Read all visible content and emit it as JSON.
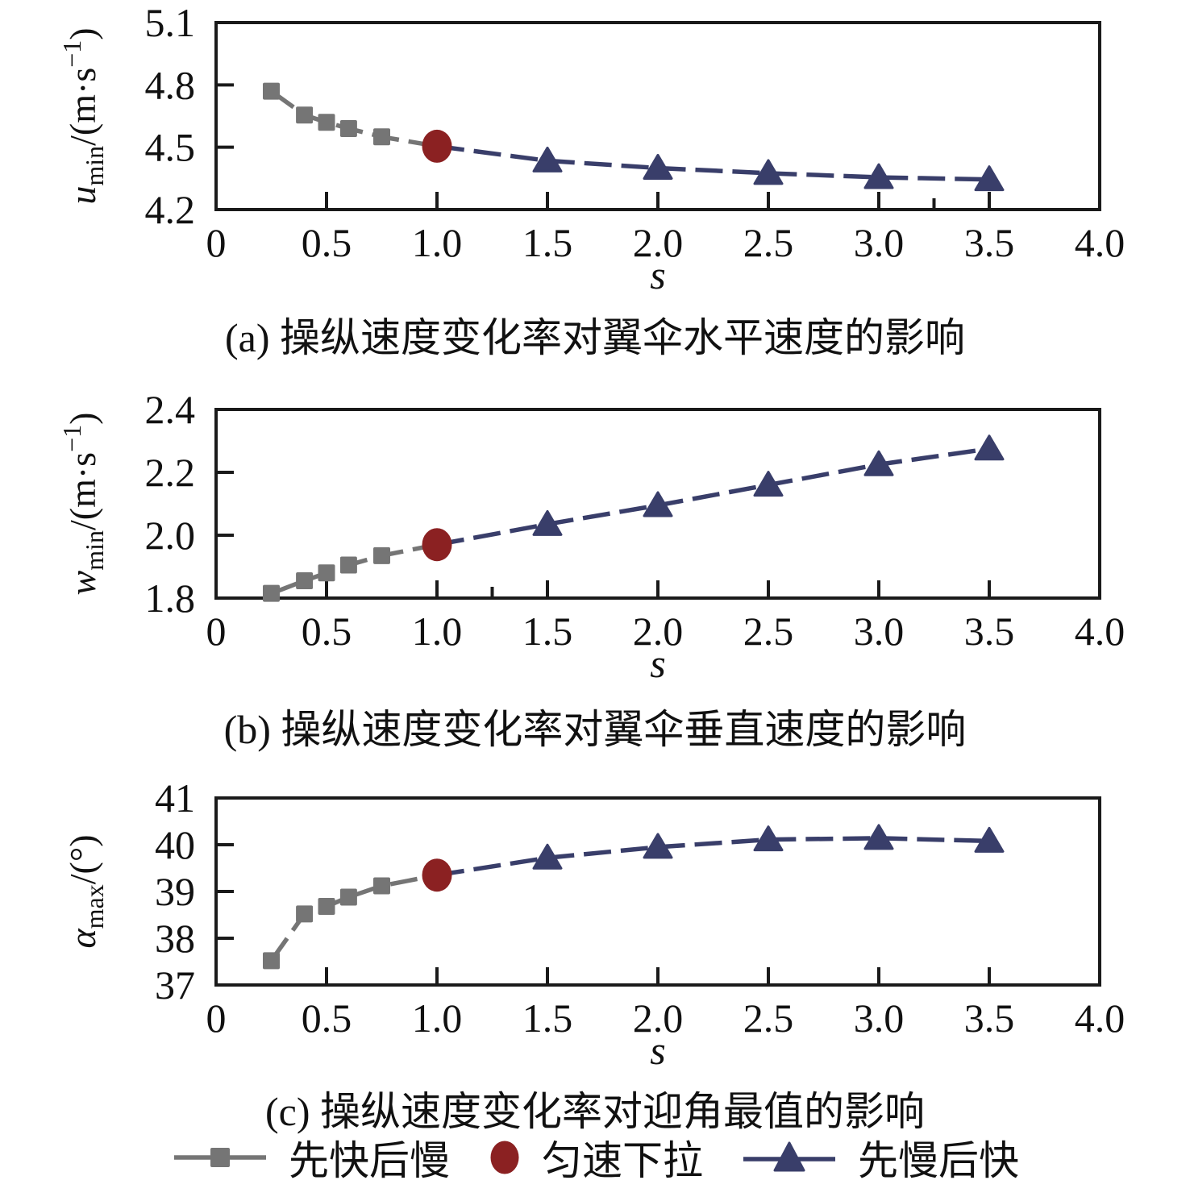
{
  "figure": {
    "background": "#ffffff",
    "colors": {
      "fast_slow_gray": "#757575",
      "uniform_red": "#8B2122",
      "slow_fast_navy": "#393E6A",
      "axis_black": "#1a1a1a",
      "text_black": "#111111"
    },
    "legend": {
      "position": "below-figure",
      "items": [
        {
          "label": "先快后慢",
          "marker": "square",
          "color": "#757575"
        },
        {
          "label": "匀速下拉",
          "marker": "circle",
          "color": "#8B2122"
        },
        {
          "label": "先慢后快",
          "marker": "triangle",
          "color": "#393E6A"
        }
      ]
    }
  },
  "chart_data": [
    {
      "id": "a",
      "type": "line",
      "caption": "(a) 操纵速度变化率对翼伞水平速度的影响",
      "xlabel": "s",
      "ylabel": {
        "var": "u",
        "sub": "min",
        "mid": "/(m·s",
        "sup": "−1",
        "end": ")"
      },
      "xlim": [
        0,
        4.0
      ],
      "ylim": [
        4.2,
        5.1
      ],
      "xticks": [
        0,
        0.5,
        1.0,
        1.5,
        2.0,
        2.5,
        3.0,
        3.5,
        4.0
      ],
      "xtick_labels": [
        "0",
        "0.5",
        "1.0",
        "1.5",
        "2.0",
        "2.5",
        "3.0",
        "3.5",
        "4.0"
      ],
      "minor_xticks": [
        3.25
      ],
      "yticks": [
        4.2,
        4.5,
        4.8,
        5.1
      ],
      "ytick_labels": [
        "4.2",
        "4.5",
        "4.8",
        "5.1"
      ],
      "grid": false,
      "series": [
        {
          "name": "先快后慢",
          "marker": "square",
          "color": "#757575",
          "x": [
            0.25,
            0.4,
            0.5,
            0.6,
            0.75
          ],
          "y": [
            4.77,
            4.655,
            4.62,
            4.59,
            4.55
          ]
        },
        {
          "name": "匀速下拉",
          "marker": "circle",
          "color": "#8B2122",
          "x": [
            1.0
          ],
          "y": [
            4.505
          ]
        },
        {
          "name": "先慢后快",
          "marker": "triangle",
          "color": "#393E6A",
          "x": [
            1.5,
            2.0,
            2.5,
            3.0,
            3.5
          ],
          "y": [
            4.435,
            4.4,
            4.375,
            4.355,
            4.345
          ]
        }
      ]
    },
    {
      "id": "b",
      "type": "line",
      "caption": "(b) 操纵速度变化率对翼伞垂直速度的影响",
      "xlabel": "s",
      "ylabel": {
        "var": "w",
        "sub": "min",
        "mid": "/(m·s",
        "sup": "−1",
        "end": ")"
      },
      "xlim": [
        0,
        4.0
      ],
      "ylim": [
        1.8,
        2.4
      ],
      "xticks": [
        0,
        0.5,
        1.0,
        1.5,
        2.0,
        2.5,
        3.0,
        3.5,
        4.0
      ],
      "xtick_labels": [
        "0",
        "0.5",
        "1.0",
        "1.5",
        "2.0",
        "2.5",
        "3.0",
        "3.5",
        "4.0"
      ],
      "minor_xticks": [
        1.25
      ],
      "yticks": [
        1.8,
        2.0,
        2.2,
        2.4
      ],
      "ytick_labels": [
        "1.8",
        "2.0",
        "2.2",
        "2.4"
      ],
      "grid": false,
      "series": [
        {
          "name": "先快后慢",
          "marker": "square",
          "color": "#757575",
          "x": [
            0.25,
            0.4,
            0.5,
            0.6,
            0.75
          ],
          "y": [
            1.815,
            1.855,
            1.88,
            1.905,
            1.935
          ]
        },
        {
          "name": "匀速下拉",
          "marker": "circle",
          "color": "#8B2122",
          "x": [
            1.0
          ],
          "y": [
            1.97
          ]
        },
        {
          "name": "先慢后快",
          "marker": "triangle",
          "color": "#393E6A",
          "x": [
            1.5,
            2.0,
            2.5,
            3.0,
            3.5
          ],
          "y": [
            2.035,
            2.095,
            2.16,
            2.225,
            2.275
          ]
        }
      ]
    },
    {
      "id": "c",
      "type": "line",
      "caption": "(c) 操纵速度变化率对迎角最值的影响",
      "xlabel": "s",
      "ylabel": {
        "var": "α",
        "sub": "max",
        "mid": "/(°)",
        "sup": "",
        "end": ""
      },
      "xlim": [
        0,
        4.0
      ],
      "ylim": [
        37,
        41
      ],
      "xticks": [
        0,
        0.5,
        1.0,
        1.5,
        2.0,
        2.5,
        3.0,
        3.5,
        4.0
      ],
      "xtick_labels": [
        "0",
        "0.5",
        "1.0",
        "1.5",
        "2.0",
        "2.5",
        "3.0",
        "3.5",
        "4.0"
      ],
      "minor_xticks": [],
      "yticks": [
        37,
        38,
        39,
        40,
        41
      ],
      "ytick_labels": [
        "37",
        "38",
        "39",
        "40",
        "41"
      ],
      "grid": false,
      "series": [
        {
          "name": "先快后慢",
          "marker": "square",
          "color": "#757575",
          "x": [
            0.25,
            0.4,
            0.5,
            0.6,
            0.75
          ],
          "y": [
            37.52,
            38.52,
            38.68,
            38.88,
            39.12
          ]
        },
        {
          "name": "匀速下拉",
          "marker": "circle",
          "color": "#8B2122",
          "x": [
            1.0
          ],
          "y": [
            39.35
          ]
        },
        {
          "name": "先慢后快",
          "marker": "triangle",
          "color": "#393E6A",
          "x": [
            1.5,
            2.0,
            2.5,
            3.0,
            3.5
          ],
          "y": [
            39.72,
            39.95,
            40.11,
            40.14,
            40.08
          ]
        }
      ]
    }
  ]
}
